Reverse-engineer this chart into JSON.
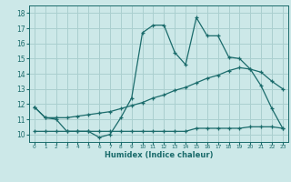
{
  "xlabel": "Humidex (Indice chaleur)",
  "ylabel": "",
  "bg_color": "#cce8e8",
  "grid_color": "#aacfcf",
  "line_color": "#1a6b6b",
  "xlim": [
    -0.5,
    23.5
  ],
  "ylim": [
    9.5,
    18.5
  ],
  "xticks": [
    0,
    1,
    2,
    3,
    4,
    5,
    6,
    7,
    8,
    9,
    10,
    11,
    12,
    13,
    14,
    15,
    16,
    17,
    18,
    19,
    20,
    21,
    22,
    23
  ],
  "yticks": [
    10,
    11,
    12,
    13,
    14,
    15,
    16,
    17,
    18
  ],
  "line1_x": [
    0,
    1,
    2,
    3,
    4,
    5,
    6,
    7,
    8,
    9,
    10,
    11,
    12,
    13,
    14,
    15,
    16,
    17,
    18,
    19,
    20,
    21,
    22,
    23
  ],
  "line1_y": [
    11.8,
    11.1,
    11.0,
    10.2,
    10.2,
    10.2,
    9.8,
    10.0,
    11.1,
    12.4,
    16.7,
    17.2,
    17.2,
    15.4,
    14.6,
    17.7,
    16.5,
    16.5,
    15.1,
    15.0,
    14.3,
    13.2,
    11.7,
    10.4
  ],
  "line2_x": [
    0,
    1,
    2,
    3,
    4,
    5,
    6,
    7,
    8,
    9,
    10,
    11,
    12,
    13,
    14,
    15,
    16,
    17,
    18,
    19,
    20,
    21,
    22,
    23
  ],
  "line2_y": [
    11.8,
    11.1,
    11.1,
    11.1,
    11.2,
    11.3,
    11.4,
    11.5,
    11.7,
    11.9,
    12.1,
    12.4,
    12.6,
    12.9,
    13.1,
    13.4,
    13.7,
    13.9,
    14.2,
    14.4,
    14.3,
    14.1,
    13.5,
    13.0
  ],
  "line3_x": [
    0,
    1,
    2,
    3,
    4,
    5,
    6,
    7,
    8,
    9,
    10,
    11,
    12,
    13,
    14,
    15,
    16,
    17,
    18,
    19,
    20,
    21,
    22,
    23
  ],
  "line3_y": [
    10.2,
    10.2,
    10.2,
    10.2,
    10.2,
    10.2,
    10.2,
    10.2,
    10.2,
    10.2,
    10.2,
    10.2,
    10.2,
    10.2,
    10.2,
    10.4,
    10.4,
    10.4,
    10.4,
    10.4,
    10.5,
    10.5,
    10.5,
    10.4
  ]
}
